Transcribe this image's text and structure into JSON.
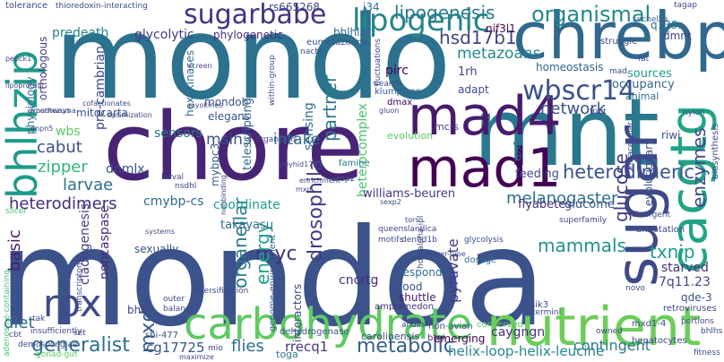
{
  "words": [
    {
      "text": "mondoa",
      "color": "#3b528b",
      "v": false
    },
    {
      "text": "mondo",
      "color": "#2c728e",
      "v": false
    },
    {
      "text": "chore",
      "color": "#482475",
      "v": false
    },
    {
      "text": "mnt",
      "color": "#2a788e",
      "v": false
    },
    {
      "text": "chrebp",
      "color": "#31688e",
      "v": false
    },
    {
      "text": "nutrient",
      "color": "#6ccd5a",
      "v": false
    },
    {
      "text": "carbohydrate",
      "color": "#5ec962",
      "v": false
    },
    {
      "text": "mad4",
      "color": "#481b6d",
      "v": false
    },
    {
      "text": "mad1",
      "color": "#440154",
      "v": false
    },
    {
      "text": "sugar",
      "color": "#3e4989",
      "v": true
    },
    {
      "text": "cacgtg",
      "color": "#20a486",
      "v": true
    },
    {
      "text": "bhlhzip",
      "color": "#1f9a8a",
      "v": true
    },
    {
      "text": "rox",
      "color": "#3e4a89",
      "v": false
    },
    {
      "text": "sugarbabe",
      "color": "#46327e",
      "v": false
    },
    {
      "text": "lipogenic",
      "color": "#25858e",
      "v": false
    },
    {
      "text": "wbscr14",
      "color": "#3b528b",
      "v": false
    },
    {
      "text": "organismal",
      "color": "#23898e",
      "v": false
    },
    {
      "text": "lipogenesis",
      "color": "#297b8e",
      "v": false
    },
    {
      "text": "heterodimeric",
      "color": "#3a538b",
      "v": false
    },
    {
      "text": "drosophila",
      "color": "#433e85",
      "v": true
    },
    {
      "text": "metabolic",
      "color": "#35608d",
      "v": false
    },
    {
      "text": "generalist",
      "color": "#2e6f8e",
      "v": false
    },
    {
      "text": "glucose",
      "color": "#443a83",
      "v": true
    },
    {
      "text": "mammals",
      "color": "#21918c",
      "v": false
    },
    {
      "text": "hsd17b1",
      "color": "#404688",
      "v": false
    },
    {
      "text": "myc",
      "color": "#46307e",
      "v": false
    },
    {
      "text": "txnip",
      "color": "#1e9c89",
      "v": false
    },
    {
      "text": "network",
      "color": "#3d4e8a",
      "v": false
    },
    {
      "text": "melanogaster",
      "color": "#2d708e",
      "v": false
    },
    {
      "text": "intake",
      "color": "#2f6c8e",
      "v": false
    },
    {
      "text": "partner",
      "color": "#2a788e",
      "v": true
    },
    {
      "text": "metazoans",
      "color": "#24878e",
      "v": false
    },
    {
      "text": "contingent",
      "color": "#2a788e",
      "v": false
    },
    {
      "text": "helix-loop-helix-leucine",
      "color": "#25858e",
      "v": false
    },
    {
      "text": "heterodimers",
      "color": "#472a7a",
      "v": false
    },
    {
      "text": "cabut",
      "color": "#3b528b",
      "v": false
    },
    {
      "text": "zipper",
      "color": "#32b67a",
      "v": false
    },
    {
      "text": "larvae",
      "color": "#2c718e",
      "v": false
    },
    {
      "text": "enzymes",
      "color": "#3e4989",
      "v": true
    },
    {
      "text": "pyruvate",
      "color": "#453781",
      "v": true
    },
    {
      "text": "energy",
      "color": "#1fa088",
      "v": true
    },
    {
      "text": "mxd",
      "color": "#38598c",
      "v": true
    },
    {
      "text": "organellar",
      "color": "#2a788e",
      "v": true
    },
    {
      "text": "msin3",
      "color": "#3b528b",
      "v": false
    },
    {
      "text": "flies",
      "color": "#2e6f8e",
      "v": false
    },
    {
      "text": "diet",
      "color": "#2f6c8e",
      "v": false
    },
    {
      "text": "basic",
      "color": "#481b6d",
      "v": true
    },
    {
      "text": "cg17725",
      "color": "#3a538b",
      "v": false
    },
    {
      "text": "rrecq1",
      "color": "#453781",
      "v": false
    },
    {
      "text": "dnmlx",
      "color": "#3b528b",
      "v": false
    },
    {
      "text": "sensing",
      "color": "#31688e",
      "v": true
    },
    {
      "text": "cncrtg",
      "color": "#472c7a",
      "v": false
    },
    {
      "text": "caygngn",
      "color": "#46327e",
      "v": false
    },
    {
      "text": "7q11.23",
      "color": "#3e4989",
      "v": false
    },
    {
      "text": "starved",
      "color": "#46307e",
      "v": false
    },
    {
      "text": "cladogenesis",
      "color": "#433e85",
      "v": true
    },
    {
      "text": "cmybp-cs",
      "color": "#31688e",
      "v": false
    },
    {
      "text": "coordinate",
      "color": "#1e9b8a",
      "v": false
    },
    {
      "text": "heterocomplex",
      "color": "#4ac16d",
      "v": true
    },
    {
      "text": "feeding",
      "color": "#3e4989",
      "v": false
    },
    {
      "text": "flyabetes",
      "color": "#46327e",
      "v": false
    },
    {
      "text": "glucome",
      "color": "#3b528b",
      "v": false
    },
    {
      "text": "takayasu",
      "color": "#2f6c8e",
      "v": false
    },
    {
      "text": "williams-beuren",
      "color": "#453781",
      "v": false
    },
    {
      "text": "rs665268",
      "color": "#3e4989",
      "v": false
    },
    {
      "text": "glycolytic",
      "color": "#443a83",
      "v": false
    },
    {
      "text": "predeath",
      "color": "#26828e",
      "v": false
    },
    {
      "text": "phylogenetic",
      "color": "#472c7a",
      "v": false
    },
    {
      "text": "wbs",
      "color": "#5ec962",
      "v": false
    },
    {
      "text": "mondob",
      "color": "#3b528b",
      "v": false
    },
    {
      "text": "elegans",
      "color": "#39568c",
      "v": false
    },
    {
      "text": "hexokinases",
      "color": "#2f6c8e",
      "v": true
    },
    {
      "text": "pre-cambrian",
      "color": "#3e4989",
      "v": true
    },
    {
      "text": "sensors",
      "color": "#2a788e",
      "v": false
    },
    {
      "text": "telescripting",
      "color": "#31688e",
      "v": true
    },
    {
      "text": "mitocarta",
      "color": "#3b528b",
      "v": false
    },
    {
      "text": "physiology",
      "color": "#2e6f8e",
      "v": true
    },
    {
      "text": "orthologous",
      "color": "#443a83",
      "v": true
    },
    {
      "text": "mybpc3",
      "color": "#38598c",
      "v": true
    },
    {
      "text": "1rh",
      "color": "#3e4989",
      "v": false
    },
    {
      "text": "adapt",
      "color": "#3e4989",
      "v": false
    },
    {
      "text": "pirc",
      "color": "#440154",
      "v": false
    },
    {
      "text": "occupancy",
      "color": "#32658e",
      "v": false
    },
    {
      "text": "sources",
      "color": "#1f9e89",
      "v": false
    },
    {
      "text": "homeostasis",
      "color": "#31688e",
      "v": false
    },
    {
      "text": "nif3l1",
      "color": "#440154",
      "v": false
    },
    {
      "text": "q139r",
      "color": "#2e6e8e",
      "v": false
    },
    {
      "text": "dmnt",
      "color": "#3e4989",
      "v": false
    },
    {
      "text": "bhlhlz",
      "color": "#31688e",
      "v": false
    },
    {
      "text": "sexually",
      "color": "#3b528b",
      "v": false
    },
    {
      "text": "noncaspase",
      "color": "#482878",
      "v": true
    },
    {
      "text": "evolutionary",
      "color": "#3b528b",
      "v": true
    },
    {
      "text": "respond",
      "color": "#2f6c8e",
      "v": false
    },
    {
      "text": "food",
      "color": "#3b528b",
      "v": false
    },
    {
      "text": "shuttle",
      "color": "#481b6d",
      "v": false
    },
    {
      "text": "interactors",
      "color": "#3e4989",
      "v": true
    },
    {
      "text": "bhlh",
      "color": "#3e4989",
      "v": false
    },
    {
      "text": "qde-3",
      "color": "#3b528b",
      "v": false
    },
    {
      "text": "mcrs",
      "color": "#443a83",
      "v": false
    },
    {
      "text": "riwi",
      "color": "#3b528b",
      "v": false
    },
    {
      "text": "i34",
      "color": "#2a788e",
      "v": false
    },
    {
      "text": "tps1",
      "color": "#2f6c8e",
      "v": true
    },
    {
      "text": "emerging",
      "color": "#440154",
      "v": false
    },
    {
      "text": "toga",
      "color": "#2a788e",
      "v": false
    },
    {
      "text": "animal",
      "color": "#2e6f8e",
      "v": false
    },
    {
      "text": "carolinensis",
      "color": "#404688",
      "v": false
    },
    {
      "text": "amphimedon",
      "color": "#46307e",
      "v": false
    },
    {
      "text": "dmax",
      "color": "#440154",
      "v": false
    },
    {
      "text": "klumpfuss",
      "color": "#35608d",
      "v": false
    },
    {
      "text": "eumetazoans",
      "color": "#3b528b",
      "v": false
    },
    {
      "text": "famine",
      "color": "#2a788e",
      "v": false
    },
    {
      "text": "struggle",
      "color": "#3e4989",
      "v": false
    },
    {
      "text": "sechellia",
      "color": "#31688e",
      "v": false
    },
    {
      "text": "sbi-477",
      "color": "#3b528b",
      "v": false
    },
    {
      "text": "non-avian",
      "color": "#3b528b",
      "v": false
    },
    {
      "text": "btgi",
      "color": "#482475",
      "v": false
    },
    {
      "text": "sik3",
      "color": "#3b528b",
      "v": false
    },
    {
      "text": "mxd1-4",
      "color": "#3b528b",
      "v": false
    },
    {
      "text": "retroviruses",
      "color": "#3e4989",
      "v": false
    },
    {
      "text": "annotation",
      "color": "#3e4989",
      "v": false
    },
    {
      "text": "dosage",
      "color": "#2e6f8e",
      "v": false
    },
    {
      "text": "tolerance",
      "color": "#3e4989",
      "v": false
    },
    {
      "text": "thioredoxin-interacting",
      "color": "#3e4989",
      "v": false
    },
    {
      "text": "dehydrogenase",
      "color": "#3b528b",
      "v": false
    },
    {
      "text": "genome-environment",
      "color": "#35608d",
      "v": true
    },
    {
      "text": "hepatocytes",
      "color": "#3e4989",
      "v": false
    },
    {
      "text": "owned",
      "color": "#3e4989",
      "v": false
    },
    {
      "text": "fitness",
      "color": "#3e4989",
      "v": false
    },
    {
      "text": "bhlhs",
      "color": "#3e4989",
      "v": false
    },
    {
      "text": "divergent",
      "color": "#3e4989",
      "v": false
    },
    {
      "text": "novo",
      "color": "#3e4989",
      "v": false
    },
    {
      "text": "diversification",
      "color": "#3e4989",
      "v": false
    },
    {
      "text": "outer",
      "color": "#3e4989",
      "v": false
    },
    {
      "text": "balance",
      "color": "#3e4989",
      "v": false
    },
    {
      "text": "cbt",
      "color": "#3e4989",
      "v": false
    },
    {
      "text": "demospongiae",
      "color": "#3e4989",
      "v": false
    },
    {
      "text": "gonad-gut",
      "color": "#5ec962",
      "v": false
    },
    {
      "text": "insufficiently",
      "color": "#3e4989",
      "v": false
    },
    {
      "text": "tak",
      "color": "#3e4989",
      "v": false
    },
    {
      "text": "set",
      "color": "#3e4989",
      "v": false
    },
    {
      "text": "transcriptome",
      "color": "#3e4989",
      "v": true
    },
    {
      "text": "adenosine-containing",
      "color": "#4ac16d",
      "v": true
    },
    {
      "text": "slicer",
      "color": "#4ac16d",
      "v": false
    },
    {
      "text": "queenslandica",
      "color": "#3e4989",
      "v": false
    },
    {
      "text": "motifs",
      "color": "#3e4989",
      "v": false
    },
    {
      "text": "glycolysis",
      "color": "#3e4989",
      "v": false
    },
    {
      "text": "larval",
      "color": "#3e4989",
      "v": false
    },
    {
      "text": "erap2",
      "color": "#3e4989",
      "v": false
    },
    {
      "text": "nsdhl",
      "color": "#3e4989",
      "v": false
    },
    {
      "text": "myokines",
      "color": "#3e4989",
      "v": false
    },
    {
      "text": "cofactionates",
      "color": "#3e4989",
      "v": false
    },
    {
      "text": "anolis",
      "color": "#3e4989",
      "v": false
    },
    {
      "text": "within-group",
      "color": "#3e4989",
      "v": true
    },
    {
      "text": "dennd1b",
      "color": "#3e4989",
      "v": false
    },
    {
      "text": "hot4alpha-ipl",
      "color": "#3e4989",
      "v": true
    },
    {
      "text": "fluctuations",
      "color": "#3e4989",
      "v": true
    },
    {
      "text": "search",
      "color": "#3e4989",
      "v": false
    },
    {
      "text": "nacht",
      "color": "#3e4989",
      "v": false
    },
    {
      "text": "tagap",
      "color": "#3e4989",
      "v": false
    },
    {
      "text": "conserved",
      "color": "#5ec962",
      "v": false
    },
    {
      "text": "fruit",
      "color": "#3e4989",
      "v": false
    },
    {
      "text": "superfamily",
      "color": "#3e4989",
      "v": false
    },
    {
      "text": "biosynthesis",
      "color": "#3e4989",
      "v": true
    },
    {
      "text": "intracellular",
      "color": "#3e4989",
      "v": true
    },
    {
      "text": "nylon",
      "color": "#3e4989",
      "v": false
    },
    {
      "text": "fat",
      "color": "#3e4989",
      "v": false
    },
    {
      "text": "organisms",
      "color": "#3e4989",
      "v": false
    },
    {
      "text": "evolution",
      "color": "#5ec962",
      "v": false
    },
    {
      "text": "enrichment",
      "color": "#3e4989",
      "v": false
    },
    {
      "text": "termini",
      "color": "#3e4989",
      "v": false
    },
    {
      "text": "portions",
      "color": "#3e4989",
      "v": false
    },
    {
      "text": "mad",
      "color": "#3e4989",
      "v": false
    },
    {
      "text": "liver-type",
      "color": "#3e4989",
      "v": false
    },
    {
      "text": "systems",
      "color": "#3e4989",
      "v": false
    },
    {
      "text": "peyhid17b",
      "color": "#3e4989",
      "v": false
    },
    {
      "text": "mio",
      "color": "#3e4989",
      "v": false
    },
    {
      "text": "maximize",
      "color": "#3e4989",
      "v": false
    },
    {
      "text": "pepck1",
      "color": "#3e4989",
      "v": false
    },
    {
      "text": "dnpn5",
      "color": "#3e4989",
      "v": false
    },
    {
      "text": "dmontezuma",
      "color": "#3e4989",
      "v": false
    },
    {
      "text": "lipoprotein",
      "color": "#3e4989",
      "v": false
    },
    {
      "text": "gluon",
      "color": "#3e4989",
      "v": false
    },
    {
      "text": "tors",
      "color": "#3e4989",
      "v": false
    },
    {
      "text": "nonbinding",
      "color": "#3e4989",
      "v": false
    },
    {
      "text": "pathways",
      "color": "#3e4989",
      "v": false
    },
    {
      "text": "optimization",
      "color": "#3e4989",
      "v": false
    },
    {
      "text": "sexp2",
      "color": "#3e4989",
      "v": false
    },
    {
      "text": "mxd",
      "color": "#3e4989",
      "v": false
    },
    {
      "text": "screen",
      "color": "#3e4989",
      "v": false
    }
  ]
}
